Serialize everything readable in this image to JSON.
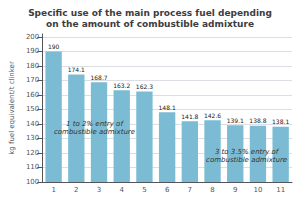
{
  "chart_data": {
    "type": "bar",
    "title": "Specific use of the main process fuel depending\non the amount of combustible admixture",
    "y_label": "kg fuel equivalent/t clinker",
    "categories": [
      1,
      2,
      3,
      4,
      5,
      6,
      7,
      8,
      9,
      10,
      11
    ],
    "values": [
      190,
      174.1,
      168.7,
      163.2,
      162.3,
      148.1,
      141.8,
      142.6,
      139.1,
      138.8,
      138.1
    ],
    "color": "#7bbcd4",
    "ylim": [
      100,
      202
    ],
    "yticks": [
      100,
      110,
      120,
      130,
      140,
      150,
      160,
      170,
      180,
      190,
      200
    ],
    "grid": true,
    "data_labels": true,
    "annotations": [
      {
        "text": "1 to 2% entry of\ncombustible admixture",
        "x": 2.8,
        "y": 137
      },
      {
        "text": "3 to 3.5% entry of\ncombustible admixture",
        "x": 9.5,
        "y": 118
      }
    ]
  }
}
